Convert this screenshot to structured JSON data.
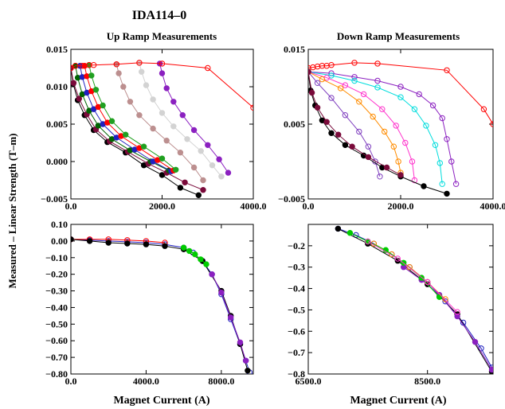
{
  "figure_title": "IDA114–0",
  "ylabel": "Measured – Linear Strength (T–m)",
  "chart_data": [
    {
      "id": "up_top",
      "type": "line",
      "title": "Up Ramp Measurements",
      "xlabel": "",
      "xlim": [
        0,
        4000
      ],
      "ylim": [
        -0.005,
        0.015
      ],
      "xticks": [
        0,
        2000,
        4000
      ],
      "xtick_labels": [
        "0.0",
        "2000.0",
        "4000.0"
      ],
      "yticks": [
        -0.005,
        0,
        0.005,
        0.01,
        0.015
      ],
      "ytick_labels": [
        "−0.005",
        "0.000",
        "0.005",
        "0.010",
        "0.015"
      ],
      "series": [
        {
          "color": "#000000",
          "marker": "filled",
          "x": [
            0,
            50,
            150,
            300,
            500,
            800,
            1200,
            1600,
            2000,
            2400,
            2800
          ],
          "y": [
            0.0125,
            0.0104,
            0.0082,
            0.0062,
            0.0042,
            0.0026,
            0.0012,
            -0.0005,
            -0.0018,
            -0.0035,
            -0.0045
          ]
        },
        {
          "color": "#7a0a3a",
          "marker": "filled",
          "x": [
            0,
            60,
            180,
            350,
            550,
            850,
            1250,
            1700,
            2100,
            2500,
            2900
          ],
          "y": [
            0.0125,
            0.0105,
            0.0084,
            0.0063,
            0.0043,
            0.0027,
            0.0013,
            -0.0003,
            -0.0015,
            -0.0028,
            -0.0038
          ]
        },
        {
          "color": "#006400",
          "marker": "filled",
          "x": [
            100,
            150,
            250,
            400,
            600,
            900,
            1300,
            1750,
            2150
          ],
          "y": [
            0.0128,
            0.0112,
            0.009,
            0.0068,
            0.0048,
            0.003,
            0.0015,
            0.0,
            -0.0012
          ]
        },
        {
          "color": "#2020c0",
          "marker": "filled",
          "x": [
            200,
            250,
            350,
            500,
            700,
            1000,
            1400,
            1800,
            2200
          ],
          "y": [
            0.0128,
            0.0113,
            0.0092,
            0.007,
            0.005,
            0.0032,
            0.0016,
            0.0,
            -0.0013
          ]
        },
        {
          "color": "#ff0000",
          "marker": "filled",
          "x": [
            300,
            350,
            450,
            600,
            800,
            1100,
            1500,
            1900,
            2250
          ],
          "y": [
            0.0128,
            0.0114,
            0.0094,
            0.0073,
            0.0052,
            0.0034,
            0.0018,
            0.0002,
            -0.0012
          ]
        },
        {
          "color": "#20a020",
          "marker": "filled",
          "x": [
            400,
            450,
            550,
            700,
            900,
            1200,
            1600,
            2000,
            2300
          ],
          "y": [
            0.0129,
            0.0115,
            0.0096,
            0.0075,
            0.0054,
            0.0036,
            0.002,
            0.0004,
            -0.0011
          ]
        },
        {
          "color": "#bc8f8f",
          "marker": "filled",
          "x": [
            1000,
            1050,
            1150,
            1300,
            1500,
            1800,
            2100,
            2400,
            2700,
            2900
          ],
          "y": [
            0.013,
            0.0118,
            0.01,
            0.008,
            0.0062,
            0.0044,
            0.0028,
            0.0012,
            -0.0008,
            -0.0025
          ]
        },
        {
          "color": "#d3d3d3",
          "marker": "filled",
          "x": [
            1500,
            1550,
            1650,
            1800,
            2000,
            2250,
            2550,
            2850,
            3100,
            3300
          ],
          "y": [
            0.0132,
            0.012,
            0.0102,
            0.0083,
            0.0065,
            0.0047,
            0.003,
            0.0014,
            -0.0005,
            -0.002
          ]
        },
        {
          "color": "#8b20c0",
          "marker": "filled",
          "x": [
            1950,
            2000,
            2100,
            2250,
            2450,
            2700,
            3000,
            3250,
            3450
          ],
          "y": [
            0.0131,
            0.0118,
            0.0098,
            0.008,
            0.0062,
            0.0042,
            0.0022,
            0.0003,
            -0.0015
          ]
        },
        {
          "color": "#ff0000",
          "marker": "open",
          "x": [
            0,
            100,
            250,
            400,
            500,
            1000,
            1500,
            2000,
            3000,
            4000
          ],
          "y": [
            0.0125,
            0.0128,
            0.0128,
            0.0129,
            0.0129,
            0.013,
            0.0132,
            0.0131,
            0.0125,
            0.0072
          ]
        }
      ]
    },
    {
      "id": "down_top",
      "type": "line",
      "title": "Down Ramp Measurements",
      "xlabel": "",
      "xlim": [
        0,
        4000
      ],
      "ylim": [
        -0.005,
        0.015
      ],
      "xticks": [
        0,
        2000,
        4000
      ],
      "xtick_labels": [
        "0.0",
        "2000.0",
        "4000.0"
      ],
      "yticks": [
        -0.005,
        0.005,
        0.015
      ],
      "ytick_labels": [
        "−0.005",
        "0.005",
        "0.015"
      ],
      "series": [
        {
          "color": "#ff0000",
          "marker": "open",
          "x": [
            0,
            100,
            200,
            300,
            400,
            500,
            1000,
            1500,
            3000,
            3800,
            4000
          ],
          "y": [
            0.0125,
            0.0126,
            0.0127,
            0.0128,
            0.0128,
            0.0129,
            0.0132,
            0.0131,
            0.0122,
            0.007,
            0.005
          ]
        },
        {
          "color": "#8b20c0",
          "marker": "open",
          "x": [
            0,
            500,
            1000,
            1500,
            2000,
            2400,
            2700,
            2900,
            3000,
            3100,
            3200
          ],
          "y": [
            0.012,
            0.0118,
            0.0113,
            0.0108,
            0.01,
            0.009,
            0.0075,
            0.0058,
            0.003,
            0.0,
            -0.003
          ]
        },
        {
          "color": "#00dddd",
          "marker": "open",
          "x": [
            0,
            500,
            1000,
            1500,
            2000,
            2300,
            2550,
            2750,
            2850,
            2900
          ],
          "y": [
            0.012,
            0.0115,
            0.0108,
            0.0099,
            0.0086,
            0.007,
            0.0048,
            0.0022,
            -0.0002,
            -0.003
          ]
        },
        {
          "color": "#ff33cc",
          "marker": "open",
          "x": [
            0,
            400,
            800,
            1200,
            1600,
            1900,
            2100,
            2250,
            2300
          ],
          "y": [
            0.012,
            0.0112,
            0.0102,
            0.009,
            0.007,
            0.0048,
            0.0025,
            0.0,
            -0.0025
          ]
        },
        {
          "color": "#ff8c00",
          "marker": "open",
          "x": [
            0,
            300,
            700,
            1100,
            1400,
            1650,
            1850,
            1950,
            2000
          ],
          "y": [
            0.012,
            0.011,
            0.0098,
            0.008,
            0.006,
            0.004,
            0.002,
            0.0,
            -0.0015
          ]
        },
        {
          "color": "#7f3fbf",
          "marker": "open",
          "x": [
            0,
            200,
            500,
            800,
            1100,
            1300,
            1450,
            1550
          ],
          "y": [
            0.012,
            0.0105,
            0.0085,
            0.0062,
            0.004,
            0.002,
            0.0,
            -0.002
          ]
        },
        {
          "color": "#000000",
          "marker": "filled",
          "x": [
            0,
            50,
            150,
            300,
            500,
            800,
            1200,
            1600,
            2000,
            2500,
            3000
          ],
          "y": [
            0.012,
            0.0095,
            0.0075,
            0.0055,
            0.0038,
            0.0022,
            0.0008,
            -0.0008,
            -0.002,
            -0.0033,
            -0.0043
          ]
        },
        {
          "color": "#7a0a3a",
          "marker": "filled",
          "x": [
            0,
            80,
            200,
            400,
            650,
            950,
            1300,
            1700,
            2000
          ],
          "y": [
            0.012,
            0.0092,
            0.0072,
            0.0053,
            0.0036,
            0.002,
            0.0006,
            -0.0008,
            -0.0018
          ]
        }
      ]
    },
    {
      "id": "up_bottom",
      "type": "line",
      "title": "",
      "xlabel": "Magnet Current (A)",
      "xlim": [
        0,
        9700
      ],
      "ylim": [
        -0.8,
        0.1
      ],
      "xticks": [
        0,
        4000,
        8000
      ],
      "xtick_labels": [
        "0.0",
        "4000.0",
        "8000.0"
      ],
      "yticks": [
        0.1,
        0,
        -0.1,
        -0.2,
        -0.3,
        -0.4,
        -0.5,
        -0.6,
        -0.7,
        -0.8
      ],
      "ytick_labels": [
        "0.10",
        "0.00",
        "−0.10",
        "−0.20",
        "−0.30",
        "−0.40",
        "−0.50",
        "−0.60",
        "−0.70",
        "−0.80"
      ],
      "series": [
        {
          "color": "#2020c0",
          "marker": "open",
          "x": [
            0,
            1000,
            2000,
            3000,
            4000,
            5000,
            6000,
            6500,
            7000,
            7500,
            8000,
            8500,
            9000,
            9300,
            9500
          ],
          "y": [
            0.01,
            0.005,
            0.0,
            -0.005,
            -0.01,
            -0.02,
            -0.04,
            -0.07,
            -0.12,
            -0.2,
            -0.32,
            -0.47,
            -0.62,
            -0.72,
            -0.79
          ]
        },
        {
          "color": "#ff0000",
          "marker": "open",
          "x": [
            0,
            1000,
            2000,
            3000,
            4000,
            5000
          ],
          "y": [
            0.01,
            0.01,
            0.01,
            0.005,
            0.0,
            -0.01
          ]
        },
        {
          "color": "#000000",
          "marker": "filled",
          "x": [
            0,
            1000,
            2000,
            3000,
            4000,
            5000,
            6000,
            7000,
            8000,
            8500,
            9000,
            9400
          ],
          "y": [
            0.01,
            0.0,
            -0.01,
            -0.015,
            -0.02,
            -0.03,
            -0.05,
            -0.12,
            -0.3,
            -0.45,
            -0.62,
            -0.78
          ]
        },
        {
          "color": "#00cc00",
          "marker": "filled",
          "x": [
            6000,
            6300,
            6600,
            6900,
            7200
          ],
          "y": [
            -0.04,
            -0.06,
            -0.08,
            -0.11,
            -0.14
          ]
        },
        {
          "color": "#8b20c0",
          "marker": "filled",
          "x": [
            7500,
            8000,
            8500,
            9000,
            9300
          ],
          "y": [
            -0.2,
            -0.31,
            -0.46,
            -0.61,
            -0.72
          ]
        }
      ]
    },
    {
      "id": "down_bottom",
      "type": "line",
      "title": "",
      "xlabel": "Magnet Current (A)",
      "xlim": [
        6500,
        9600
      ],
      "ylim": [
        -0.8,
        -0.1
      ],
      "xticks": [
        6500,
        8500
      ],
      "xtick_labels": [
        "6500.0",
        "8500.0"
      ],
      "yticks": [
        -0.2,
        -0.3,
        -0.4,
        -0.5,
        -0.6,
        -0.7,
        -0.8
      ],
      "ytick_labels": [
        "−0.2",
        "−0.3",
        "−0.4",
        "−0.5",
        "−0.6",
        "−0.7",
        "−0.8"
      ],
      "series": [
        {
          "color": "#2020c0",
          "marker": "open",
          "x": [
            7000,
            7300,
            7600,
            7900,
            8200,
            8500,
            8800,
            9100,
            9400,
            9580
          ],
          "y": [
            -0.12,
            -0.15,
            -0.19,
            -0.24,
            -0.3,
            -0.37,
            -0.46,
            -0.56,
            -0.68,
            -0.77
          ]
        },
        {
          "color": "#000000",
          "marker": "filled",
          "x": [
            7000,
            7500,
            8000,
            8500,
            9000,
            9580
          ],
          "y": [
            -0.12,
            -0.19,
            -0.27,
            -0.38,
            -0.52,
            -0.79
          ]
        },
        {
          "color": "#8b20c0",
          "marker": "filled",
          "x": [
            8100,
            8400,
            8700,
            9000,
            9300,
            9580
          ],
          "y": [
            -0.3,
            -0.36,
            -0.43,
            -0.53,
            -0.65,
            -0.78
          ]
        },
        {
          "color": "#ff8c00",
          "marker": "open",
          "x": [
            7600,
            7900,
            8200,
            8500,
            8800
          ],
          "y": [
            -0.19,
            -0.24,
            -0.3,
            -0.37,
            -0.45
          ]
        },
        {
          "color": "#00cc00",
          "marker": "filled",
          "x": [
            7200,
            7500,
            7800,
            8100,
            8400,
            8700
          ],
          "y": [
            -0.14,
            -0.18,
            -0.22,
            -0.28,
            -0.35,
            -0.44
          ]
        },
        {
          "color": "#ff33cc",
          "marker": "open",
          "x": [
            7500,
            8000,
            8500,
            9000
          ],
          "y": [
            -0.18,
            -0.26,
            -0.37,
            -0.51
          ]
        }
      ]
    }
  ]
}
